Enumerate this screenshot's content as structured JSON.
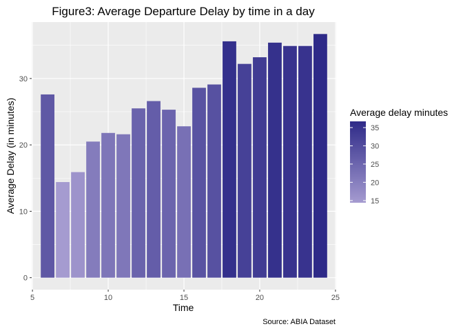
{
  "chart_data": {
    "type": "bar",
    "title": "Figure3: Average Departure Delay by time in a day",
    "xlabel": "Time",
    "ylabel": "Average Delay (in minutes)",
    "caption": "Source: ABIA Dataset",
    "x": [
      6,
      7,
      8,
      9,
      10,
      11,
      12,
      13,
      14,
      15,
      16,
      17,
      18,
      19,
      20,
      21,
      22,
      23,
      24
    ],
    "values": [
      27.6,
      14.4,
      15.9,
      20.5,
      21.8,
      21.6,
      25.5,
      26.6,
      25.3,
      22.8,
      28.6,
      29.1,
      35.6,
      32.2,
      33.2,
      35.4,
      34.9,
      34.9,
      36.7
    ],
    "xlim": [
      4.95,
      25.05
    ],
    "ylim": [
      -1.8,
      38.5
    ],
    "xticks": [
      5,
      10,
      15,
      20,
      25
    ],
    "yticks": [
      0,
      10,
      20,
      30
    ],
    "grid": true,
    "legend": {
      "title": "Average delay minutes",
      "position": "right",
      "ticks": [
        15,
        20,
        25,
        30,
        35
      ],
      "range": [
        14.4,
        36.7
      ],
      "color_low": "#a59bd0",
      "color_high": "#2e2a88"
    },
    "colors": {
      "panel_bg": "#ebebeb",
      "grid": "#ffffff",
      "text": "#000000",
      "tick_text": "#4d4d4d"
    }
  }
}
